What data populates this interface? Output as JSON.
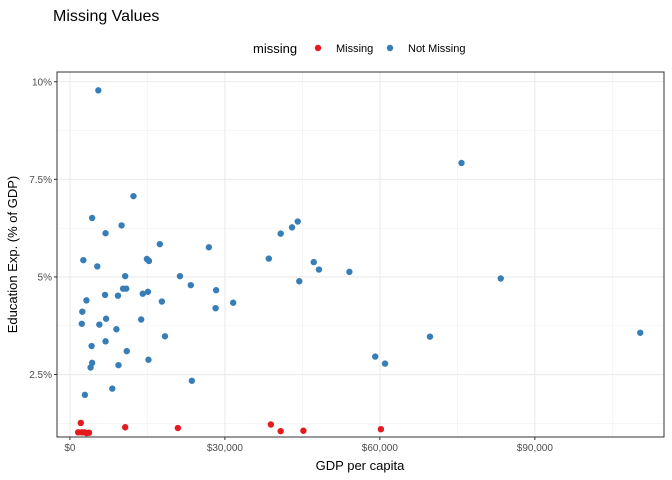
{
  "chart_data": {
    "type": "scatter",
    "title": "Missing Values",
    "xlabel": "GDP per capita",
    "ylabel": "Education Exp. (% of GDP)",
    "xlim": [
      -2500,
      115000
    ],
    "ylim": [
      0.9,
      10.25
    ],
    "x_ticks": [
      {
        "value": 0,
        "label": "$0"
      },
      {
        "value": 30000,
        "label": "$30,000"
      },
      {
        "value": 60000,
        "label": "$60,000"
      },
      {
        "value": 90000,
        "label": "$90,000"
      }
    ],
    "y_ticks": [
      {
        "value": 2.5,
        "label": "2.5%"
      },
      {
        "value": 5,
        "label": "5%"
      },
      {
        "value": 7.5,
        "label": "7.5%"
      },
      {
        "value": 10,
        "label": "10%"
      }
    ],
    "grid": true,
    "legend": {
      "title": "missing",
      "position": "top",
      "entries": [
        {
          "name": "Missing",
          "color": "#e41a1c"
        },
        {
          "name": "Not Missing",
          "color": "#377eb8"
        }
      ]
    },
    "series": [
      {
        "name": "Missing",
        "color": "#e41a1c",
        "points": [
          {
            "x": 1600,
            "y": 1.02
          },
          {
            "x": 2100,
            "y": 1.26
          },
          {
            "x": 2300,
            "y": 1.02
          },
          {
            "x": 2800,
            "y": 1.02
          },
          {
            "x": 3200,
            "y": 1.0
          },
          {
            "x": 3700,
            "y": 1.01
          },
          {
            "x": 10700,
            "y": 1.15
          },
          {
            "x": 20900,
            "y": 1.13
          },
          {
            "x": 38900,
            "y": 1.22
          },
          {
            "x": 40800,
            "y": 1.05
          },
          {
            "x": 45200,
            "y": 1.06
          },
          {
            "x": 60200,
            "y": 1.1
          }
        ]
      },
      {
        "name": "Not Missing",
        "color": "#377eb8",
        "points": [
          {
            "x": 5500,
            "y": 9.78
          },
          {
            "x": 75800,
            "y": 7.92
          },
          {
            "x": 12300,
            "y": 7.07
          },
          {
            "x": 4300,
            "y": 6.51
          },
          {
            "x": 10000,
            "y": 6.32
          },
          {
            "x": 44100,
            "y": 6.42
          },
          {
            "x": 43000,
            "y": 6.27
          },
          {
            "x": 40800,
            "y": 6.11
          },
          {
            "x": 6900,
            "y": 6.12
          },
          {
            "x": 17400,
            "y": 5.84
          },
          {
            "x": 26900,
            "y": 5.76
          },
          {
            "x": 38500,
            "y": 5.47
          },
          {
            "x": 47200,
            "y": 5.38
          },
          {
            "x": 48200,
            "y": 5.19
          },
          {
            "x": 54100,
            "y": 5.13
          },
          {
            "x": 83400,
            "y": 4.96
          },
          {
            "x": 2600,
            "y": 5.43
          },
          {
            "x": 14900,
            "y": 5.46
          },
          {
            "x": 15300,
            "y": 5.41
          },
          {
            "x": 5300,
            "y": 5.27
          },
          {
            "x": 10700,
            "y": 5.02
          },
          {
            "x": 21300,
            "y": 5.02
          },
          {
            "x": 44400,
            "y": 4.89
          },
          {
            "x": 23400,
            "y": 4.79
          },
          {
            "x": 10300,
            "y": 4.7
          },
          {
            "x": 10900,
            "y": 4.7
          },
          {
            "x": 28300,
            "y": 4.66
          },
          {
            "x": 14100,
            "y": 4.57
          },
          {
            "x": 15100,
            "y": 4.62
          },
          {
            "x": 6800,
            "y": 4.54
          },
          {
            "x": 9300,
            "y": 4.52
          },
          {
            "x": 3200,
            "y": 4.4
          },
          {
            "x": 17800,
            "y": 4.37
          },
          {
            "x": 31600,
            "y": 4.34
          },
          {
            "x": 28200,
            "y": 4.2
          },
          {
            "x": 2400,
            "y": 4.11
          },
          {
            "x": 7000,
            "y": 3.93
          },
          {
            "x": 13800,
            "y": 3.91
          },
          {
            "x": 2300,
            "y": 3.8
          },
          {
            "x": 5700,
            "y": 3.78
          },
          {
            "x": 9000,
            "y": 3.66
          },
          {
            "x": 18400,
            "y": 3.48
          },
          {
            "x": 69700,
            "y": 3.47
          },
          {
            "x": 110400,
            "y": 3.57
          },
          {
            "x": 6900,
            "y": 3.35
          },
          {
            "x": 4200,
            "y": 3.23
          },
          {
            "x": 11000,
            "y": 3.1
          },
          {
            "x": 59100,
            "y": 2.96
          },
          {
            "x": 15200,
            "y": 2.88
          },
          {
            "x": 61000,
            "y": 2.78
          },
          {
            "x": 4300,
            "y": 2.8
          },
          {
            "x": 9400,
            "y": 2.74
          },
          {
            "x": 4000,
            "y": 2.68
          },
          {
            "x": 23600,
            "y": 2.34
          },
          {
            "x": 8200,
            "y": 2.14
          },
          {
            "x": 2900,
            "y": 1.98
          }
        ]
      }
    ]
  }
}
